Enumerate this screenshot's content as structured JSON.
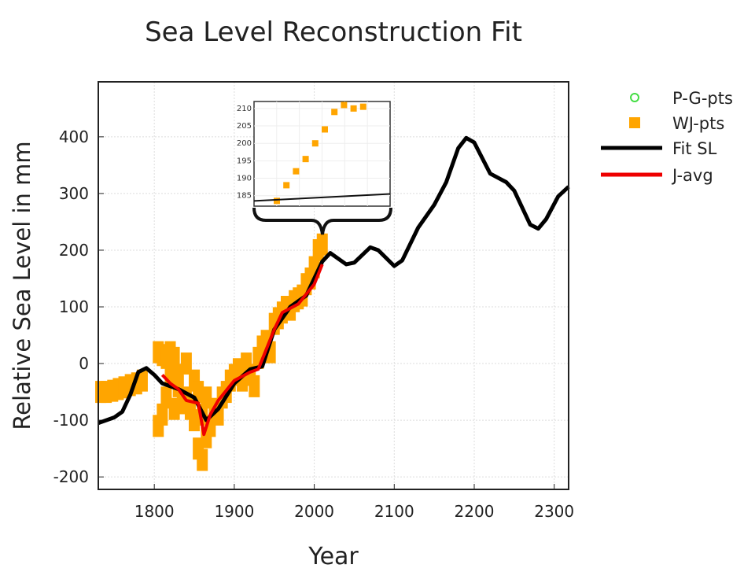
{
  "chart_data": {
    "type": "line",
    "title": "Sea Level Reconstruction Fit",
    "xlabel": "Year",
    "ylabel": "Relative Sea Level in mm",
    "xlim": [
      1730,
      2318
    ],
    "ylim": [
      -222,
      497
    ],
    "xticks": [
      1800,
      1900,
      2000,
      2100,
      2200,
      2300
    ],
    "yticks": [
      -200,
      -100,
      0,
      100,
      200,
      300,
      400
    ],
    "grid": true,
    "legend": {
      "placement": "right",
      "entries": [
        {
          "label": "P-G-pts",
          "color": "#44dd44",
          "marker": "circle"
        },
        {
          "label": "WJ-pts",
          "color": "#ffa500",
          "marker": "square"
        },
        {
          "label": "Fit SL",
          "color": "#000000",
          "marker": "line"
        },
        {
          "label": "J-avg",
          "color": "#ee0000",
          "marker": "line"
        }
      ]
    },
    "series": [
      {
        "name": "Fit SL",
        "color": "#000000",
        "x": [
          1730,
          1750,
          1760,
          1770,
          1780,
          1790,
          1800,
          1810,
          1830,
          1850,
          1865,
          1880,
          1900,
          1920,
          1935,
          1950,
          1970,
          1990,
          2010,
          2020,
          2040,
          2050,
          2070,
          2080,
          2100,
          2110,
          2130,
          2150,
          2165,
          2180,
          2190,
          2200,
          2220,
          2240,
          2250,
          2270,
          2280,
          2290,
          2305,
          2318
        ],
        "y": [
          -105,
          -95,
          -85,
          -55,
          -15,
          -8,
          -20,
          -35,
          -45,
          -60,
          -100,
          -80,
          -35,
          -10,
          -5,
          60,
          100,
          120,
          180,
          195,
          175,
          178,
          205,
          200,
          172,
          182,
          240,
          280,
          320,
          380,
          398,
          390,
          335,
          320,
          305,
          245,
          238,
          255,
          295,
          312
        ]
      },
      {
        "name": "J-avg",
        "color": "#ee0000",
        "x": [
          1810,
          1820,
          1830,
          1840,
          1855,
          1862,
          1870,
          1880,
          1900,
          1920,
          1930,
          1950,
          1960,
          1980,
          2000,
          2010
        ],
        "y": [
          -20,
          -35,
          -45,
          -65,
          -70,
          -125,
          -90,
          -65,
          -30,
          -15,
          -10,
          60,
          90,
          105,
          140,
          175
        ]
      },
      {
        "name": "WJ-pts",
        "color": "#ffa500",
        "x": [
          1733,
          1740,
          1748,
          1755,
          1762,
          1770,
          1778,
          1785,
          1805,
          1805,
          1810,
          1810,
          1815,
          1815,
          1820,
          1820,
          1825,
          1825,
          1830,
          1830,
          1835,
          1840,
          1840,
          1845,
          1850,
          1850,
          1855,
          1855,
          1860,
          1860,
          1865,
          1865,
          1870,
          1875,
          1880,
          1885,
          1890,
          1895,
          1900,
          1905,
          1910,
          1915,
          1920,
          1925,
          1930,
          1935,
          1940,
          1945,
          1950,
          1955,
          1960,
          1965,
          1970,
          1975,
          1980,
          1985,
          1990,
          1995,
          2000,
          2005,
          2010
        ],
        "y": [
          -50,
          -50,
          -48,
          -45,
          -42,
          -38,
          -35,
          -30,
          20,
          -110,
          15,
          -90,
          10,
          -60,
          20,
          -20,
          -80,
          10,
          -40,
          -20,
          -70,
          0,
          -60,
          -80,
          -30,
          -100,
          -50,
          -150,
          -90,
          -170,
          -130,
          -60,
          -110,
          -80,
          -90,
          -60,
          -50,
          -30,
          -20,
          -10,
          -30,
          0,
          -20,
          -40,
          10,
          30,
          40,
          20,
          70,
          80,
          90,
          100,
          95,
          110,
          115,
          120,
          140,
          150,
          170,
          200,
          210
        ]
      }
    ],
    "inset": {
      "yticks": [
        185,
        190,
        195,
        200,
        205,
        210
      ],
      "points": [
        183.5,
        188,
        192,
        195.5,
        200,
        204,
        209,
        211,
        210,
        210.5
      ],
      "line": [
        183.5,
        185.5
      ]
    }
  }
}
